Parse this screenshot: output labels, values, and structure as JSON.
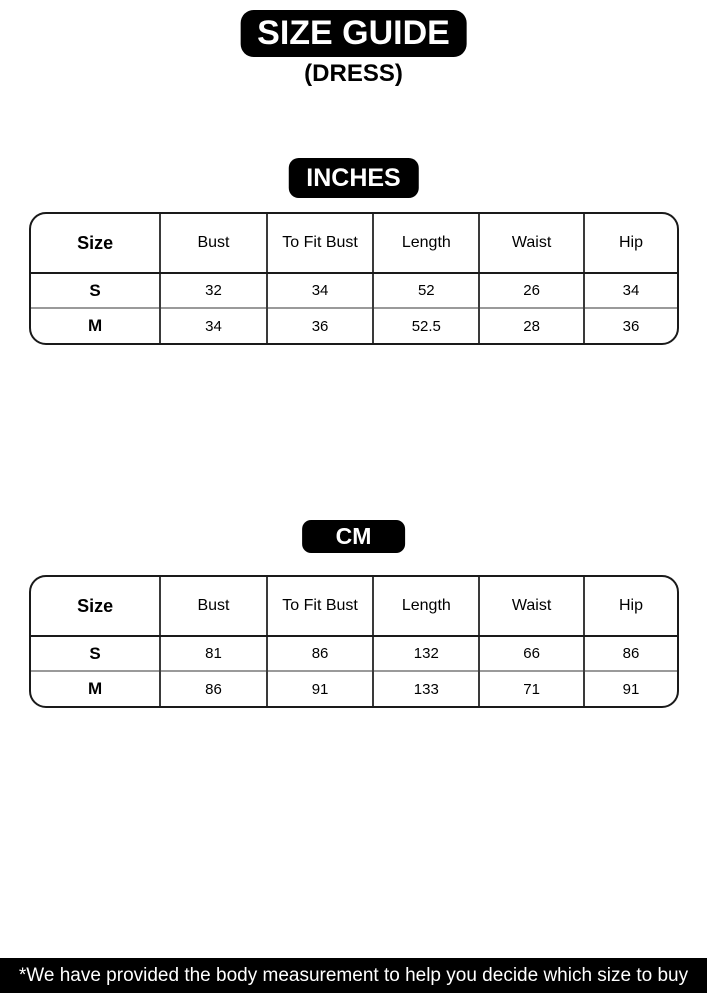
{
  "page": {
    "title": "SIZE GUIDE",
    "subtitle": "(DRESS)",
    "footnote": "*We have provided the body measurement to help you decide which size to buy"
  },
  "colors": {
    "badge_bg": "#000000",
    "badge_text": "#ffffff",
    "table_outer_border": "#1a1a1a",
    "table_column_border": "#3a3a3a",
    "row_divider": "#9a9a9a",
    "body_text": "#000000",
    "background": "#ffffff"
  },
  "tables": {
    "inches": {
      "unit_label": "INCHES",
      "headers": [
        "Size",
        "Bust",
        "To Fit Bust",
        "Length",
        "Waist",
        "Hip"
      ],
      "rows": [
        {
          "size": "S",
          "values": [
            "32",
            "34",
            "52",
            "26",
            "34"
          ]
        },
        {
          "size": "M",
          "values": [
            "34",
            "36",
            "52.5",
            "28",
            "36"
          ]
        }
      ]
    },
    "cm": {
      "unit_label": "CM",
      "headers": [
        "Size",
        "Bust",
        "To Fit Bust",
        "Length",
        "Waist",
        "Hip"
      ],
      "rows": [
        {
          "size": "S",
          "values": [
            "81",
            "86",
            "132",
            "66",
            "86"
          ]
        },
        {
          "size": "M",
          "values": [
            "86",
            "91",
            "133",
            "71",
            "91"
          ]
        }
      ]
    }
  }
}
